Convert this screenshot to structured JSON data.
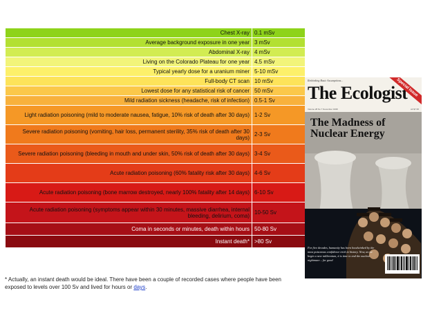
{
  "rows": [
    {
      "description": "Chest X-ray",
      "dose": "0.1 mSv",
      "bg": "#8ed31a",
      "color": "#111111"
    },
    {
      "description": "Average background exposure in one year",
      "dose": "3 mSv",
      "bg": "#b3e032",
      "color": "#111111"
    },
    {
      "description": "Abdominal X-ray",
      "dose": "4 mSv",
      "bg": "#d2ec52",
      "color": "#111111"
    },
    {
      "description": "Living on the Colorado Plateau for one year",
      "dose": "4.5 mSv",
      "bg": "#f2f47a",
      "color": "#111111"
    },
    {
      "description": "Typical yearly dose for a uranium miner",
      "dose": "5-10 mSv",
      "bg": "#fdf06a",
      "color": "#111111"
    },
    {
      "description": "Full-body CT scan",
      "dose": "10 mSv",
      "bg": "#fde35a",
      "color": "#111111"
    },
    {
      "description": "Lowest dose for any statistical risk of cancer",
      "dose": "50 mSv",
      "bg": "#fbc84a",
      "color": "#111111"
    },
    {
      "description": "Mild radiation sickness (headache, risk of infection)",
      "dose": "0.5-1 Sv",
      "bg": "#f8b13c",
      "color": "#111111"
    },
    {
      "description": "Light radiation poisoning (mild to moderate nausea, fatigue, 10% risk of death after 30 days)",
      "dose": "1-2 Sv",
      "bg": "#f59826",
      "color": "#111111"
    },
    {
      "description": "Severe radiation poisoning (vomiting, hair loss, permanent sterility, 35% risk of death after 30 days)",
      "dose": "2-3 Sv",
      "bg": "#f07a1c",
      "color": "#111111"
    },
    {
      "description": "Severe radiation poisoning (bleeding in mouth and under skin, 50% risk of death after 30 days)",
      "dose": "3-4 Sv",
      "bg": "#ea5a1a",
      "color": "#111111"
    },
    {
      "description": "Acute radiation poisoning (60% fatality risk after 30 days)",
      "dose": "4-6 Sv",
      "bg": "#e43c18",
      "color": "#111111"
    },
    {
      "description": "Acute radiation poisoning (bone marrow destroyed, nearly 100% fatality after 14 days)",
      "dose": "6-10 Sv",
      "bg": "#d81a16",
      "color": "#111111"
    },
    {
      "description": "Acute radiation poisoning (symptoms appear within 30 minutes, massive diarrhea, internal bleeding, delirium, coma)",
      "dose": "10-50 Sv",
      "bg": "#c4141a",
      "color": "#111111"
    },
    {
      "description": "Coma in seconds or minutes, death within hours",
      "dose": "50-80 Sv",
      "bg": "#a60f16",
      "color": "#ffffff"
    },
    {
      "description": "Instant death*",
      "dose": ">80 Sv",
      "bg": "#8a0b10",
      "color": "#ffffff"
    }
  ],
  "footnote": {
    "text": "* Actually, an instant death would be ideal. There have been a couple of recorded cases where people have been exposed to levels over 100 Sv and lived for hours or ",
    "link": "days",
    "end": "."
  },
  "cover": {
    "kicker": "Rethinking Basic Assumptions...",
    "title": "The Ecologist",
    "sash": "Special Issue",
    "issue": "Volume 28 No 7 November 1998",
    "price": "£3 $7.95",
    "headline": "The Madness of Nuclear Energy",
    "blurb": "For five decades, humanity has been hoodwinked by the most poisonous confidence trick in history. Now, as we begin a new millennium, it is time to end the nuclear nightmare – for good",
    "colors": {
      "sky": "#b8b4ad",
      "tower": "#d8d6d0",
      "crowd": "#3a2a1c"
    }
  }
}
